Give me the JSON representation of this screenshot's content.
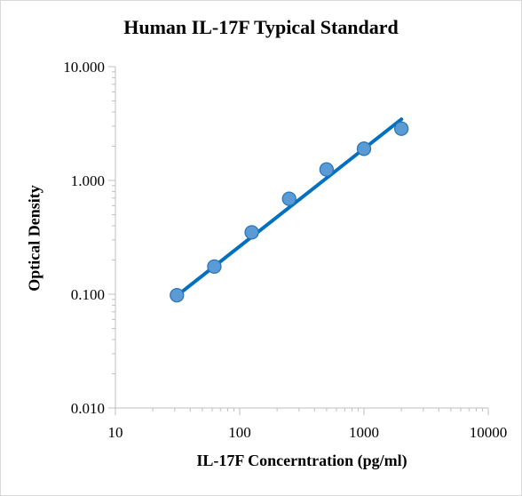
{
  "chart_data": {
    "type": "scatter",
    "title": "Human IL-17F Typical Standard",
    "xlabel": "IL-17F Concerntration (pg/ml)",
    "ylabel": "Optical Density",
    "xscale": "log",
    "yscale": "log",
    "xlim": [
      10,
      10000
    ],
    "ylim": [
      0.01,
      10
    ],
    "x_ticks": [
      10,
      100,
      1000,
      10000
    ],
    "x_tick_labels": [
      "10",
      "100",
      "1000",
      "10000"
    ],
    "y_ticks": [
      0.01,
      0.1,
      1,
      10
    ],
    "y_tick_labels": [
      "0.010",
      "0.100",
      "1.000",
      "10.000"
    ],
    "grid": false,
    "series": [
      {
        "type": "scatter",
        "x": [
          31.25,
          62.5,
          125,
          250,
          500,
          1000,
          2000
        ],
        "y": [
          0.098,
          0.175,
          0.35,
          0.69,
          1.25,
          1.9,
          2.85
        ]
      }
    ],
    "trendline": {
      "type": "power",
      "x": [
        31.25,
        2000
      ],
      "y": [
        0.097,
        3.45
      ]
    },
    "colors": {
      "marker_fill": "#5b9bd5",
      "marker_edge": "#2e75b6",
      "line": "#0070c0"
    }
  }
}
